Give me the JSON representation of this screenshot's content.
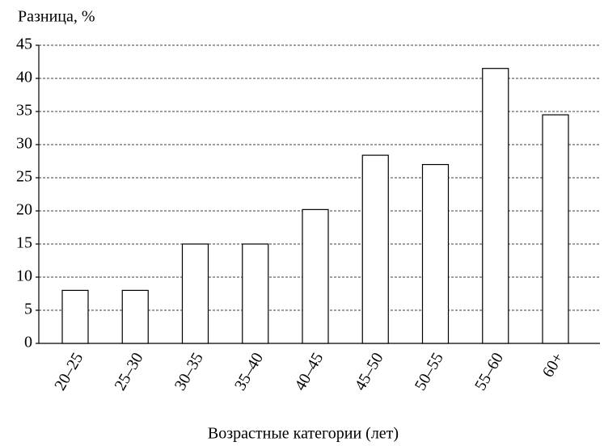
{
  "chart_data": {
    "type": "bar",
    "y_label": "Разница, %",
    "x_label": "Возрастные категории (лет)",
    "categories": [
      "20–25",
      "25–30",
      "30–35",
      "35–40",
      "40–45",
      "45–50",
      "50–55",
      "55–60",
      "60+"
    ],
    "values": [
      8,
      8,
      15,
      15,
      20.2,
      28.4,
      27,
      41.5,
      34.5
    ],
    "color": "#ffffff",
    "ylim": [
      0,
      45
    ],
    "yticks": [
      0,
      5,
      10,
      15,
      20,
      25,
      30,
      35,
      40,
      45
    ],
    "grid": true
  }
}
